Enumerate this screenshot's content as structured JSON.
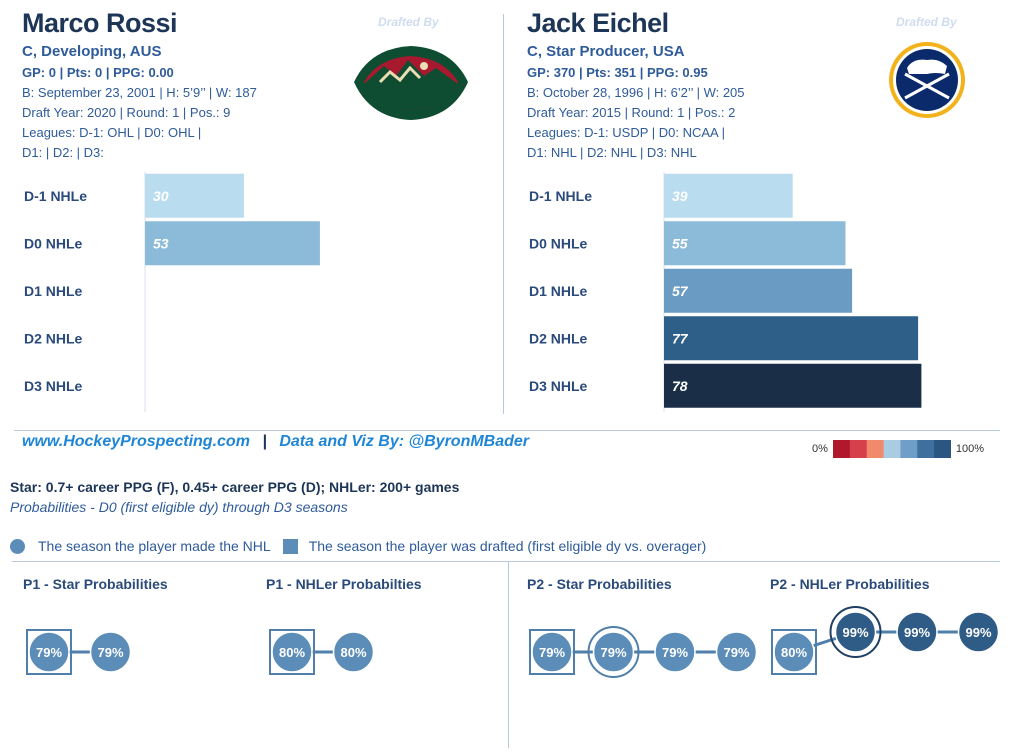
{
  "players": [
    {
      "name": "Marco Rossi",
      "subtitle": "C, Developing, AUS",
      "stats_line": "GP: 0 | Pts: 0 | PPG: 0.00",
      "bio_line": "B: September 23, 2001 | H: 5’9’’ | W: 187",
      "draft_line": "Draft Year: 2020 | Round: 1 | Pos.: 9",
      "leagues_line": "Leagues: D-1: OHL | D0: OHL |",
      "d_line": "D1:  | D2:  | D3:",
      "drafted_by": "Drafted By",
      "team_logo": "minnesota-wild-logo"
    },
    {
      "name": "Jack Eichel",
      "subtitle": "C, Star Producer, USA",
      "stats_line": "GP: 370 | Pts: 351 | PPG: 0.95",
      "bio_line": "B: October 28, 1996 | H: 6’2’’ | W: 205",
      "draft_line": "Draft Year: 2015 | Round: 1 | Pos.: 2",
      "leagues_line": "Leagues: D-1: USDP | D0: NCAA |",
      "d_line": "D1: NHL | D2: NHL | D3: NHL",
      "drafted_by": "Drafted By",
      "team_logo": "buffalo-sabres-logo"
    }
  ],
  "footer": {
    "site": "www.HockeyProspecting.com",
    "sep": "|",
    "credit": "Data and Viz By: @ByronMBader",
    "scale_min": "0%",
    "scale_max": "100%",
    "scale_colors": [
      "#b2182b",
      "#d6404a",
      "#f08a6b",
      "#a9cce3",
      "#6f9fc8",
      "#3f6f9f",
      "#2b5684"
    ],
    "def_line": "Star: 0.7+ career PPG (F), 0.45+ career PPG (D); NHLer: 200+ games",
    "prob_line": "Probabilities - D0 (first eligible dy) through D3 seasons",
    "key_circle": "The season the player made the NHL",
    "key_square": "The season the player was drafted (first eligible dy vs. overager)"
  },
  "chart_data": [
    {
      "type": "bar",
      "title": "",
      "player": "Marco Rossi",
      "categories": [
        "D-1 NHLe",
        "D0 NHLe",
        "D1 NHLe",
        "D2 NHLe",
        "D3 NHLe"
      ],
      "values": [
        30,
        53,
        null,
        null,
        null
      ],
      "colors": [
        "#b9dcee",
        "#8cbad9",
        "#6a9bc3",
        "#2e5f88",
        "#1a2f47"
      ]
    },
    {
      "type": "bar",
      "title": "",
      "player": "Jack Eichel",
      "categories": [
        "D-1 NHLe",
        "D0 NHLe",
        "D1 NHLe",
        "D2 NHLe",
        "D3 NHLe"
      ],
      "values": [
        39,
        55,
        57,
        77,
        78
      ],
      "colors": [
        "#b9dcee",
        "#8cbad9",
        "#6a9bc3",
        "#2e5f88",
        "#1a2f47"
      ]
    }
  ],
  "probabilities": [
    {
      "title": "P1 - Star Probabilities",
      "values": [
        "79%",
        "79%"
      ],
      "drafted_index": 0,
      "nhl_index": null
    },
    {
      "title": "P1 - NHLer Probabilties",
      "values": [
        "80%",
        "80%"
      ],
      "drafted_index": 0,
      "nhl_index": null
    },
    {
      "title": "P2 - Star Probabilities",
      "values": [
        "79%",
        "79%",
        "79%",
        "79%"
      ],
      "drafted_index": 0,
      "nhl_index": 1
    },
    {
      "title": "P2 - NHLer Probabilities",
      "values": [
        "80%",
        "99%",
        "99%",
        "99%"
      ],
      "drafted_index": 0,
      "nhl_index": 1
    }
  ]
}
